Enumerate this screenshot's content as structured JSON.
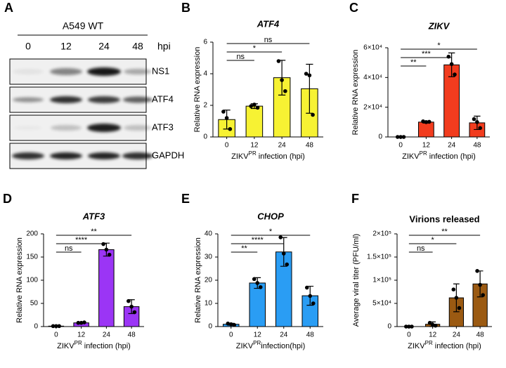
{
  "blot": {
    "panel": "A",
    "cell_line": "A549 WT",
    "timepoints": [
      "0",
      "12",
      "24",
      "48"
    ],
    "unit": "hpi",
    "rows": [
      "NS1",
      "ATF4",
      "ATF3",
      "GAPDH"
    ]
  },
  "chart_data": [
    {
      "type": "bar",
      "panel": "B",
      "title": "ATF4",
      "title_italic": true,
      "ylabel": "Relative RNA expression",
      "xlabel_parts": [
        "ZIKV",
        "PR",
        " infection (hpi)"
      ],
      "categories": [
        "0",
        "12",
        "24",
        "48"
      ],
      "values": [
        1.1,
        1.95,
        3.75,
        3.05
      ],
      "errors": [
        0.6,
        0.15,
        1.1,
        1.55
      ],
      "points": [
        [
          1.6,
          1.2,
          0.5
        ],
        [
          1.95,
          2.05,
          1.85
        ],
        [
          4.8,
          3.6,
          2.9
        ],
        [
          4.0,
          3.9,
          1.4
        ]
      ],
      "color": "#f7f233",
      "ylim": [
        0,
        6
      ],
      "yticks": [
        0,
        2,
        4,
        6
      ],
      "significance": [
        {
          "span": [
            "0",
            "12"
          ],
          "label": "ns"
        },
        {
          "span": [
            "0",
            "24"
          ],
          "label": "*"
        },
        {
          "span": [
            "0",
            "48"
          ],
          "label": "ns"
        }
      ]
    },
    {
      "type": "bar",
      "panel": "C",
      "title": "ZIKV",
      "title_italic": true,
      "ylabel": "Relative RNA expression",
      "xlabel_parts": [
        "ZIKV",
        "PR",
        " infection (hpi)"
      ],
      "categories": [
        "0",
        "12",
        "24",
        "48"
      ],
      "values": [
        0,
        10000,
        48500,
        9500
      ],
      "errors": [
        0,
        700,
        8000,
        4500
      ],
      "points": [
        [
          0,
          0,
          0
        ],
        [
          10500,
          10000,
          10200
        ],
        [
          54000,
          49000,
          42000
        ],
        [
          12000,
          10000,
          6000
        ]
      ],
      "color": "#f23c1e",
      "ylim": [
        0,
        60000
      ],
      "yticks": [
        0,
        {
          "value": 20000,
          "label": "2×10⁴"
        },
        {
          "value": 40000,
          "label": "4×10⁴"
        },
        {
          "value": 60000,
          "label": "6×10⁴"
        }
      ],
      "significance": [
        {
          "span": [
            "0",
            "12"
          ],
          "label": "**"
        },
        {
          "span": [
            "0",
            "24"
          ],
          "label": "***"
        },
        {
          "span": [
            "0",
            "48"
          ],
          "label": "*"
        }
      ]
    },
    {
      "type": "bar",
      "panel": "D",
      "title": "ATF3",
      "title_italic": true,
      "ylabel": "Relative RNA expression",
      "xlabel_parts": [
        "ZIKV",
        "PR",
        " infection (hpi)"
      ],
      "categories": [
        "0",
        "12",
        "24",
        "48"
      ],
      "values": [
        1,
        8,
        166,
        43
      ],
      "errors": [
        0.5,
        1,
        14,
        15
      ],
      "points": [
        [
          1,
          1,
          1
        ],
        [
          8,
          8,
          9
        ],
        [
          178,
          166,
          155
        ],
        [
          55,
          43,
          31
        ]
      ],
      "color": "#9b35f5",
      "ylim": [
        0,
        200
      ],
      "yticks": [
        0,
        50,
        100,
        150,
        200
      ],
      "significance": [
        {
          "span": [
            "0",
            "12"
          ],
          "label": "ns"
        },
        {
          "span": [
            "0",
            "24"
          ],
          "label": "****"
        },
        {
          "span": [
            "0",
            "48"
          ],
          "label": "**"
        }
      ]
    },
    {
      "type": "bar",
      "panel": "E",
      "title": "CHOP",
      "title_italic": true,
      "ylabel": "Relative RNA expression",
      "xlabel_parts": [
        "ZIKV",
        "PR",
        "infection(hpi)"
      ],
      "categories": [
        "0",
        "12",
        "24",
        "48"
      ],
      "values": [
        1,
        18.8,
        32.2,
        13.3
      ],
      "errors": [
        0.4,
        2.3,
        6.2,
        4.1
      ],
      "points": [
        [
          1.3,
          1.0,
          0.7
        ],
        [
          20.5,
          18.8,
          17.0
        ],
        [
          38.5,
          31.5,
          26.8
        ],
        [
          16.8,
          13.2,
          10
        ]
      ],
      "color": "#2a9df4",
      "ylim": [
        0,
        40
      ],
      "yticks": [
        0,
        10,
        20,
        30,
        40
      ],
      "significance": [
        {
          "span": [
            "0",
            "12"
          ],
          "label": "**"
        },
        {
          "span": [
            "0",
            "24"
          ],
          "label": "****"
        },
        {
          "span": [
            "0",
            "48"
          ],
          "label": "*"
        }
      ]
    },
    {
      "type": "bar",
      "panel": "F",
      "title": "Virions released",
      "title_italic": false,
      "ylabel": "Average viral titer (PFU/ml)",
      "xlabel_parts": [
        "ZIKV",
        "PR",
        " infection (hpi)"
      ],
      "categories": [
        "0",
        "12",
        "24",
        "48"
      ],
      "values": [
        0,
        5000,
        62000,
        92000
      ],
      "errors": [
        0,
        5000,
        30000,
        28000
      ],
      "points": [
        [
          0,
          0,
          0
        ],
        [
          8000,
          4000,
          2000
        ],
        [
          80000,
          62000,
          40000
        ],
        [
          120000,
          90000,
          68000
        ]
      ],
      "color": "#9b5a12",
      "ylim": [
        0,
        200000
      ],
      "yticks": [
        0,
        {
          "value": 50000,
          "label": "5×10⁴"
        },
        {
          "value": 100000,
          "label": "1×10⁵"
        },
        {
          "value": 150000,
          "label": "1.5×10⁵"
        },
        {
          "value": 200000,
          "label": "2×10⁵"
        }
      ],
      "significance": [
        {
          "span": [
            "0",
            "12"
          ],
          "label": "ns"
        },
        {
          "span": [
            "0",
            "24"
          ],
          "label": "*"
        },
        {
          "span": [
            "0",
            "48"
          ],
          "label": "**"
        }
      ]
    }
  ]
}
